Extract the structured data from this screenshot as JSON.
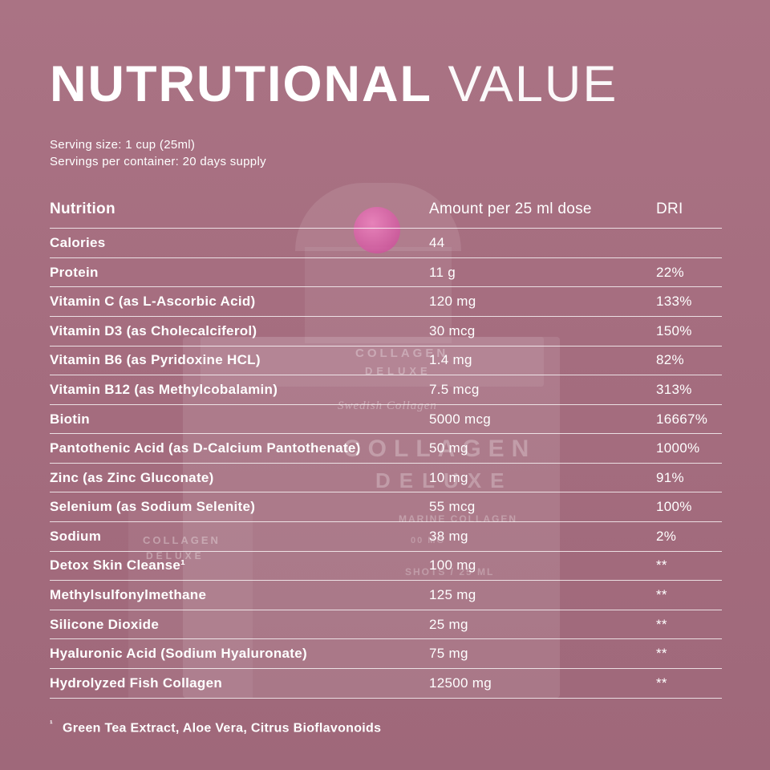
{
  "page": {
    "title": {
      "primary": "NUTRUTIONAL",
      "secondary": "VALUE"
    },
    "serving": {
      "line1": "Serving size: 1 cup (25ml)",
      "line2": "Servings per container: 20 days supply"
    },
    "table": {
      "headers": {
        "nutrition": "Nutrition",
        "amount": "Amount per 25 ml dose",
        "dri": "DRI"
      },
      "rows": [
        {
          "name": "Calories",
          "amount": "44",
          "dri": ""
        },
        {
          "name": "Protein",
          "amount": "11 g",
          "dri": "22%"
        },
        {
          "name": "Vitamin C (as L-Ascorbic Acid)",
          "amount": "120 mg",
          "dri": "133%"
        },
        {
          "name": "Vitamin D3 (as Cholecalciferol)",
          "amount": "30 mcg",
          "dri": "150%"
        },
        {
          "name": "Vitamin B6 (as Pyridoxine HCL)",
          "amount": "1.4 mg",
          "dri": "82%"
        },
        {
          "name": "Vitamin B12 (as Methylcobalamin)",
          "amount": "7.5 mcg",
          "dri": "313%"
        },
        {
          "name": "Biotin",
          "amount": "5000 mcg",
          "dri": "16667%"
        },
        {
          "name": "Pantothenic Acid (as D-Calcium Pantothenate)",
          "amount": "50 mg",
          "dri": "1000%"
        },
        {
          "name": "Zinc (as Zinc Gluconate)",
          "amount": "10 mg",
          "dri": "91%"
        },
        {
          "name": "Selenium (as Sodium Selenite)",
          "amount": "55 mcg",
          "dri": "100%"
        },
        {
          "name": "Sodium",
          "amount": "38 mg",
          "dri": "2%"
        },
        {
          "name": "Detox Skin Cleanse¹",
          "amount": "100 mg",
          "dri": "**"
        },
        {
          "name": "Methylsulfonylmethane",
          "amount": "125 mg",
          "dri": "**"
        },
        {
          "name": "Silicone Dioxide",
          "amount": "25 mg",
          "dri": "**"
        },
        {
          "name": "Hyaluronic Acid (Sodium Hyaluronate)",
          "amount": "75 mg",
          "dri": "**"
        },
        {
          "name": "Hydrolyzed Fish Collagen",
          "amount": "12500 mg",
          "dri": "**"
        }
      ]
    },
    "footnote": {
      "marker": "¹",
      "text": "Green Tea Extract, Aloe Vera, Citrus Bioflavonoids"
    },
    "watermark": {
      "brand_top": "COLLAGEN",
      "brand_top_sub": "DELUXE",
      "script_brand": "Swedish Collagen",
      "brand_big": "COLLAGEN",
      "brand_big_sub": "DELUXE",
      "marine": "MARINE COLLAGEN",
      "mg_partial": "00 MG",
      "side_brand": "COLLAGEN",
      "side_brand_sub": "DELUXE",
      "shots": "SHOTS / 25 ML"
    },
    "colors": {
      "background": "#a56d7f",
      "text": "#ffffff",
      "bottle_cap": "#c63e91"
    }
  }
}
